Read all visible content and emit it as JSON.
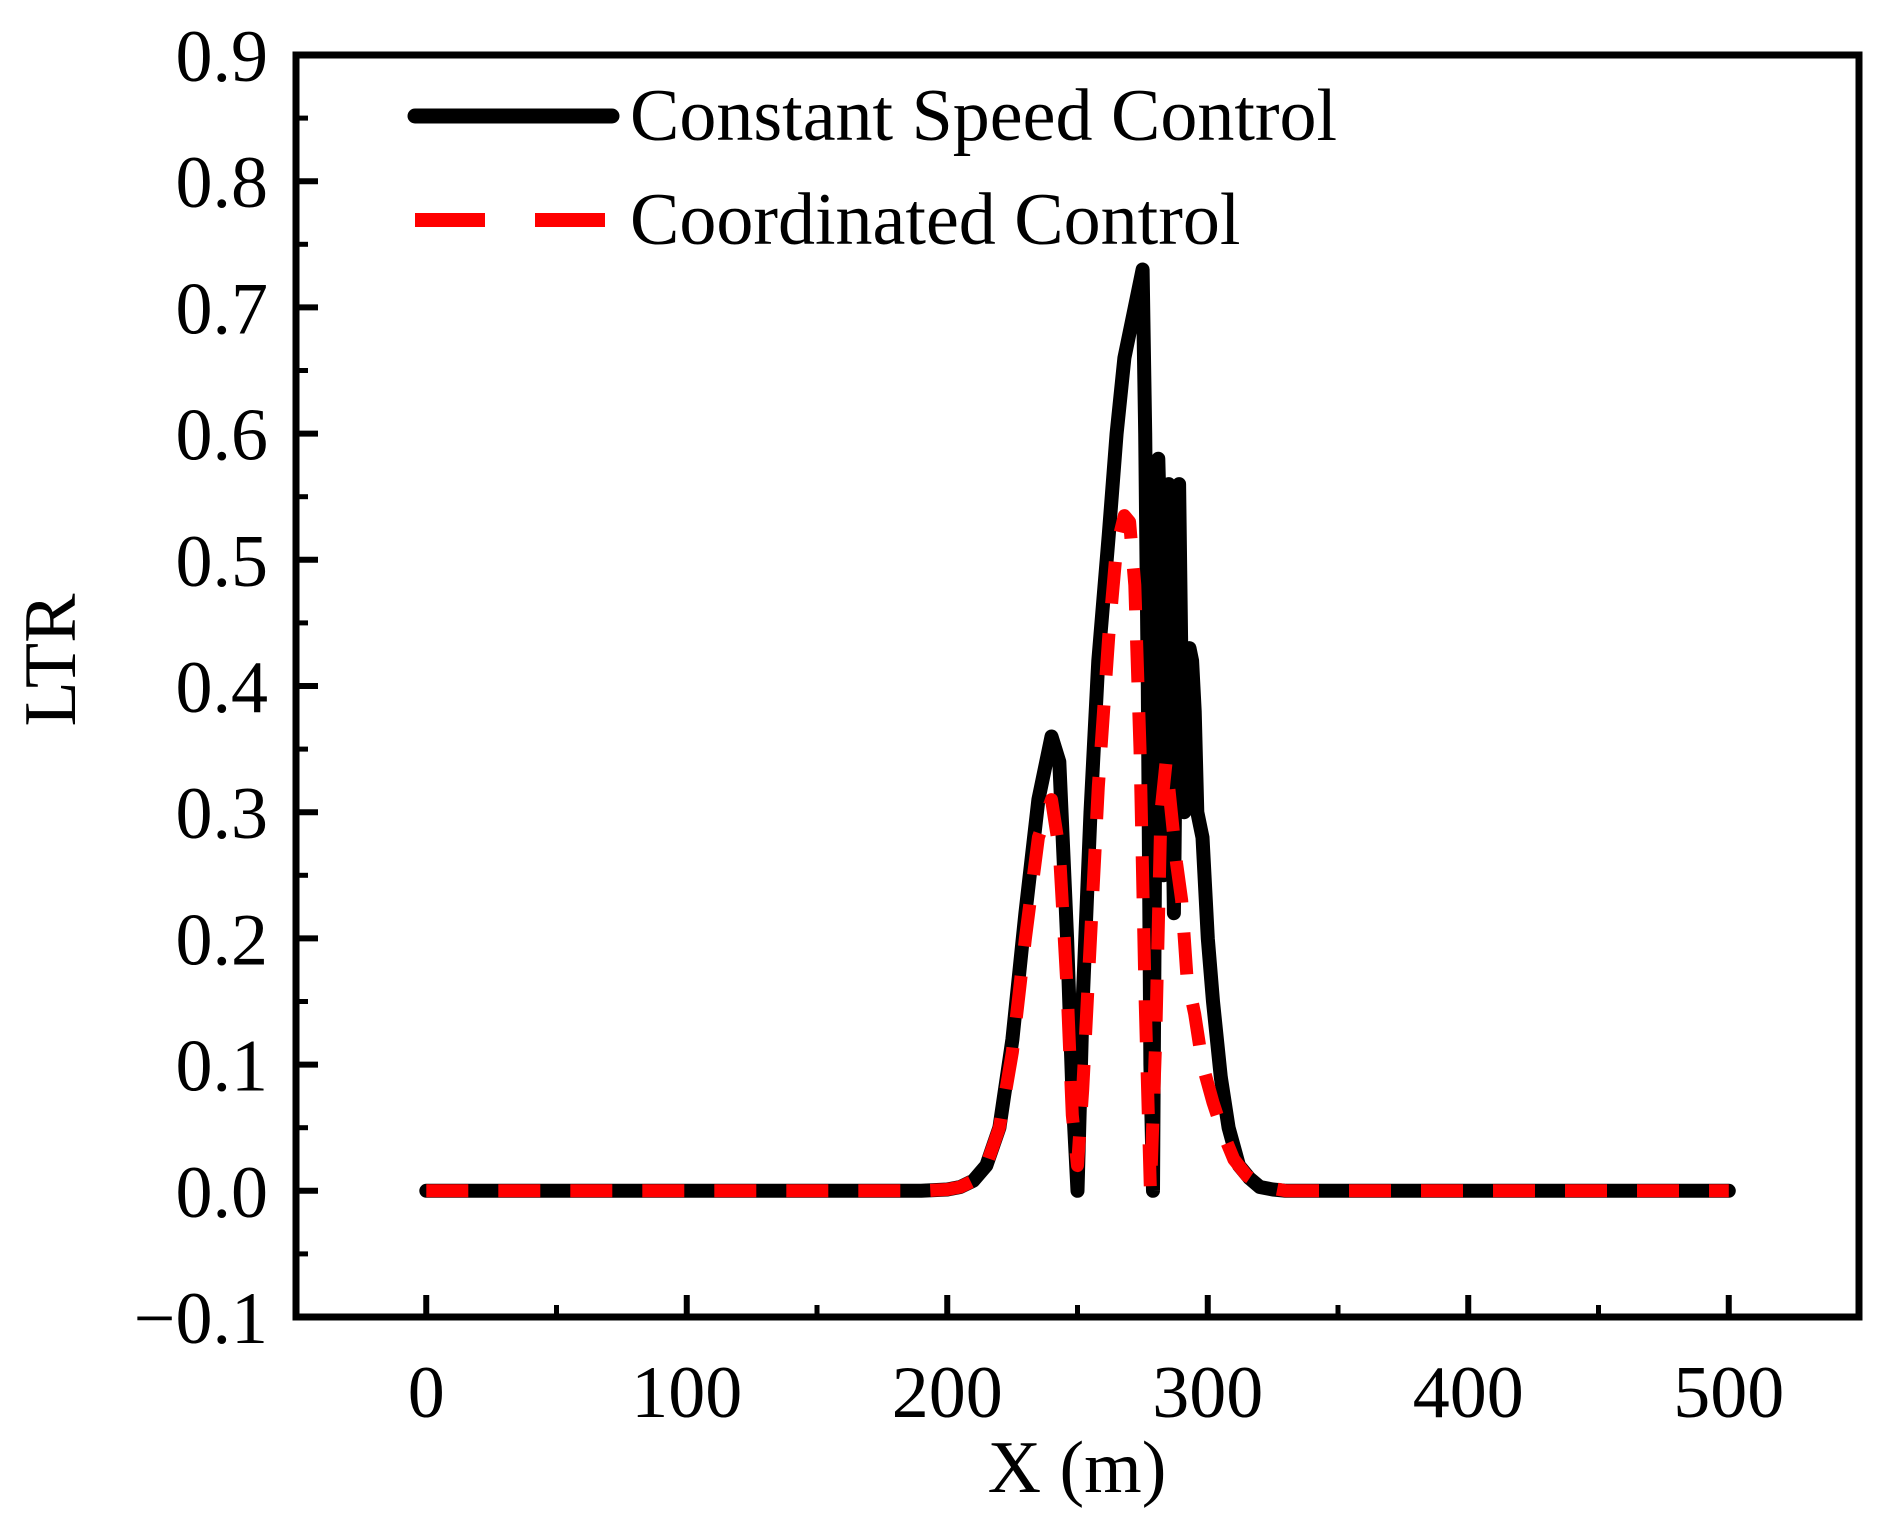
{
  "chart_data": {
    "type": "line",
    "title": "",
    "xlabel": "X (m)",
    "ylabel": "LTR",
    "xlim": [
      -50,
      550
    ],
    "ylim": [
      -0.1,
      0.9
    ],
    "xticks": [
      0,
      100,
      200,
      300,
      400,
      500
    ],
    "xtick_labels": [
      "0",
      "100",
      "200",
      "300",
      "400",
      "500"
    ],
    "xminor_step": 50,
    "yticks": [
      -0.1,
      0.0,
      0.1,
      0.2,
      0.3,
      0.4,
      0.5,
      0.6,
      0.7,
      0.8,
      0.9
    ],
    "ytick_labels": [
      "−0.1",
      "0.0",
      "0.1",
      "0.2",
      "0.3",
      "0.4",
      "0.5",
      "0.6",
      "0.7",
      "0.8",
      "0.9"
    ],
    "yminor_step": 0.05,
    "grid": false,
    "legend_position": "top-left",
    "series": [
      {
        "name": "Constant Speed Control",
        "color": "#000000",
        "style": "solid",
        "x": [
          0,
          50,
          100,
          150,
          190,
          200,
          205,
          210,
          215,
          220,
          225,
          230,
          235,
          240,
          243,
          246,
          248,
          250,
          252,
          255,
          258,
          262,
          265,
          268,
          272,
          275,
          276,
          277,
          278,
          279,
          280,
          281,
          282,
          283,
          284,
          285,
          286,
          287,
          288,
          289,
          290,
          291,
          292,
          293,
          294,
          295,
          296,
          298,
          300,
          302,
          305,
          308,
          312,
          316,
          320,
          325,
          330,
          400,
          450,
          500
        ],
        "y": [
          0,
          0,
          0,
          0,
          0,
          0.001,
          0.003,
          0.008,
          0.02,
          0.05,
          0.12,
          0.22,
          0.31,
          0.36,
          0.34,
          0.2,
          0.08,
          0.0,
          0.15,
          0.3,
          0.42,
          0.52,
          0.6,
          0.66,
          0.7,
          0.73,
          0.6,
          0.4,
          0.1,
          0.0,
          0.35,
          0.58,
          0.5,
          0.25,
          0.45,
          0.56,
          0.38,
          0.22,
          0.42,
          0.56,
          0.4,
          0.3,
          0.36,
          0.43,
          0.42,
          0.38,
          0.3,
          0.28,
          0.2,
          0.15,
          0.09,
          0.05,
          0.02,
          0.01,
          0.003,
          0.001,
          0,
          0,
          0,
          0
        ]
      },
      {
        "name": "Coordinated Control",
        "color": "#ff0000",
        "style": "dashed",
        "x": [
          0,
          50,
          100,
          150,
          190,
          200,
          205,
          210,
          215,
          220,
          225,
          230,
          235,
          240,
          243,
          246,
          248,
          250,
          252,
          255,
          258,
          262,
          265,
          268,
          270,
          272,
          274,
          276,
          278,
          280,
          282,
          284,
          286,
          288,
          290,
          292,
          295,
          298,
          302,
          306,
          310,
          315,
          320,
          325,
          330,
          400,
          450,
          500
        ],
        "y": [
          0,
          0,
          0,
          0,
          0,
          0.001,
          0.003,
          0.008,
          0.02,
          0.05,
          0.11,
          0.2,
          0.28,
          0.31,
          0.27,
          0.16,
          0.06,
          0.02,
          0.08,
          0.2,
          0.32,
          0.44,
          0.51,
          0.535,
          0.53,
          0.48,
          0.35,
          0.15,
          0.0,
          0.12,
          0.3,
          0.34,
          0.3,
          0.26,
          0.23,
          0.17,
          0.14,
          0.1,
          0.07,
          0.045,
          0.025,
          0.012,
          0.005,
          0.002,
          0,
          0,
          0,
          0
        ]
      }
    ]
  }
}
